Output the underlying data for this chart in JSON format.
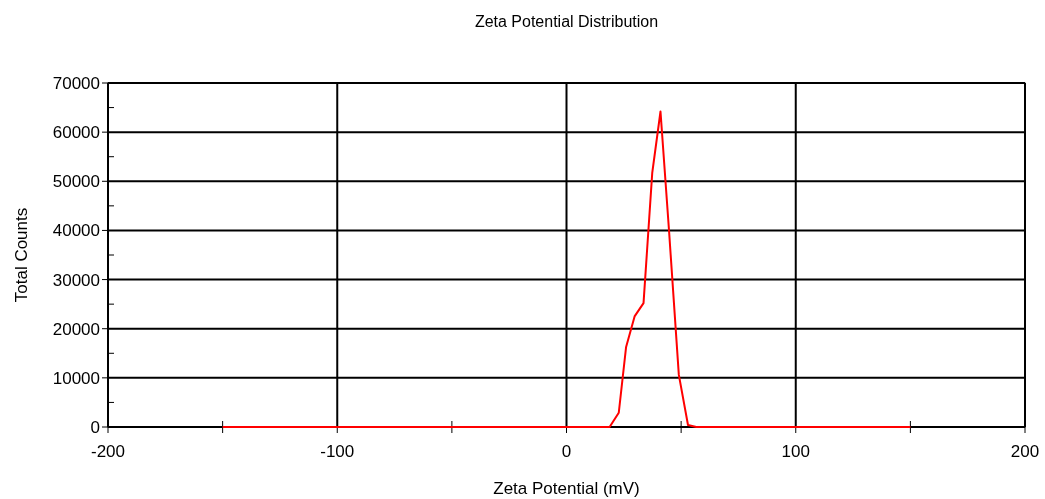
{
  "chart_data": {
    "type": "line",
    "title": "Zeta Potential Distribution",
    "xlabel": "Zeta Potential (mV)",
    "ylabel": "Total Counts",
    "x": [
      -150,
      18.8,
      22.8,
      26,
      29.7,
      33.6,
      37.4,
      41,
      44.7,
      49,
      53,
      56.6,
      150
    ],
    "series": [
      {
        "color": "#ff0000",
        "values": [
          0,
          0,
          2900,
          16300,
          22500,
          25200,
          51700,
          64200,
          40100,
          10600,
          400,
          0,
          0
        ]
      }
    ],
    "xlim": [
      -200,
      200
    ],
    "ylim": [
      0,
      70000
    ],
    "xticks": [
      -200,
      {
        "value": -150,
        "label": null
      },
      -100,
      {
        "value": -50,
        "label": null
      },
      0,
      {
        "value": 50,
        "label": null
      },
      100,
      {
        "value": 150,
        "label": null
      },
      200
    ],
    "yticks": [
      0,
      {
        "value": 5000,
        "label": null
      },
      10000,
      {
        "value": 15000,
        "label": null
      },
      20000,
      {
        "value": 25000,
        "label": null
      },
      30000,
      {
        "value": 35000,
        "label": null
      },
      40000,
      {
        "value": 45000,
        "label": null
      },
      50000,
      {
        "value": 55000,
        "label": null
      },
      60000,
      {
        "value": 65000,
        "label": null
      },
      70000
    ],
    "grid": true,
    "marker": "none",
    "line_style": "solid"
  }
}
